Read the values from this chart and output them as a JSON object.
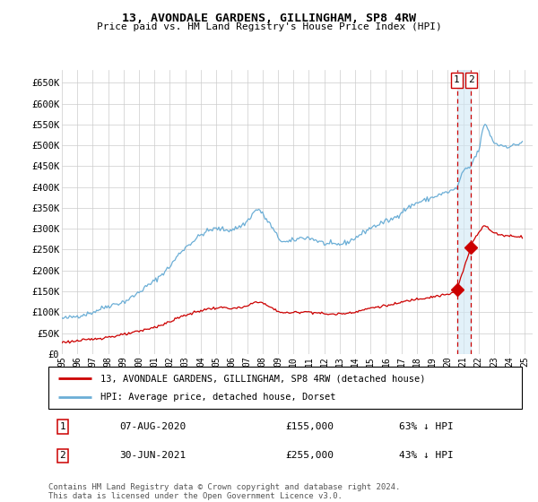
{
  "title": "13, AVONDALE GARDENS, GILLINGHAM, SP8 4RW",
  "subtitle": "Price paid vs. HM Land Registry's House Price Index (HPI)",
  "legend_line1": "13, AVONDALE GARDENS, GILLINGHAM, SP8 4RW (detached house)",
  "legend_line2": "HPI: Average price, detached house, Dorset",
  "transaction1_label": "1",
  "transaction1_date": "07-AUG-2020",
  "transaction1_price": "£155,000",
  "transaction1_pct": "63% ↓ HPI",
  "transaction2_label": "2",
  "transaction2_date": "30-JUN-2021",
  "transaction2_price": "£255,000",
  "transaction2_pct": "43% ↓ HPI",
  "footer": "Contains HM Land Registry data © Crown copyright and database right 2024.\nThis data is licensed under the Open Government Licence v3.0.",
  "hpi_color": "#6baed6",
  "price_color": "#cc0000",
  "vline_color": "#cc0000",
  "shade_color": "#d0e8f5",
  "grid_color": "#cccccc",
  "background_color": "#ffffff",
  "ylim": [
    0,
    680000
  ],
  "yticks": [
    0,
    50000,
    100000,
    150000,
    200000,
    250000,
    300000,
    350000,
    400000,
    450000,
    500000,
    550000,
    600000,
    650000
  ],
  "vline1_x": 2020.604,
  "vline2_x": 2021.496,
  "marker1_x": 2020.604,
  "marker1_y": 155000,
  "marker2_x": 2021.496,
  "marker2_y": 255000,
  "xlim": [
    1995.0,
    2025.5
  ],
  "xtick_years": [
    1995,
    1996,
    1997,
    1998,
    1999,
    2000,
    2001,
    2002,
    2003,
    2004,
    2005,
    2006,
    2007,
    2008,
    2009,
    2010,
    2011,
    2012,
    2013,
    2014,
    2015,
    2016,
    2017,
    2018,
    2019,
    2020,
    2021,
    2022,
    2023,
    2024,
    2025
  ]
}
